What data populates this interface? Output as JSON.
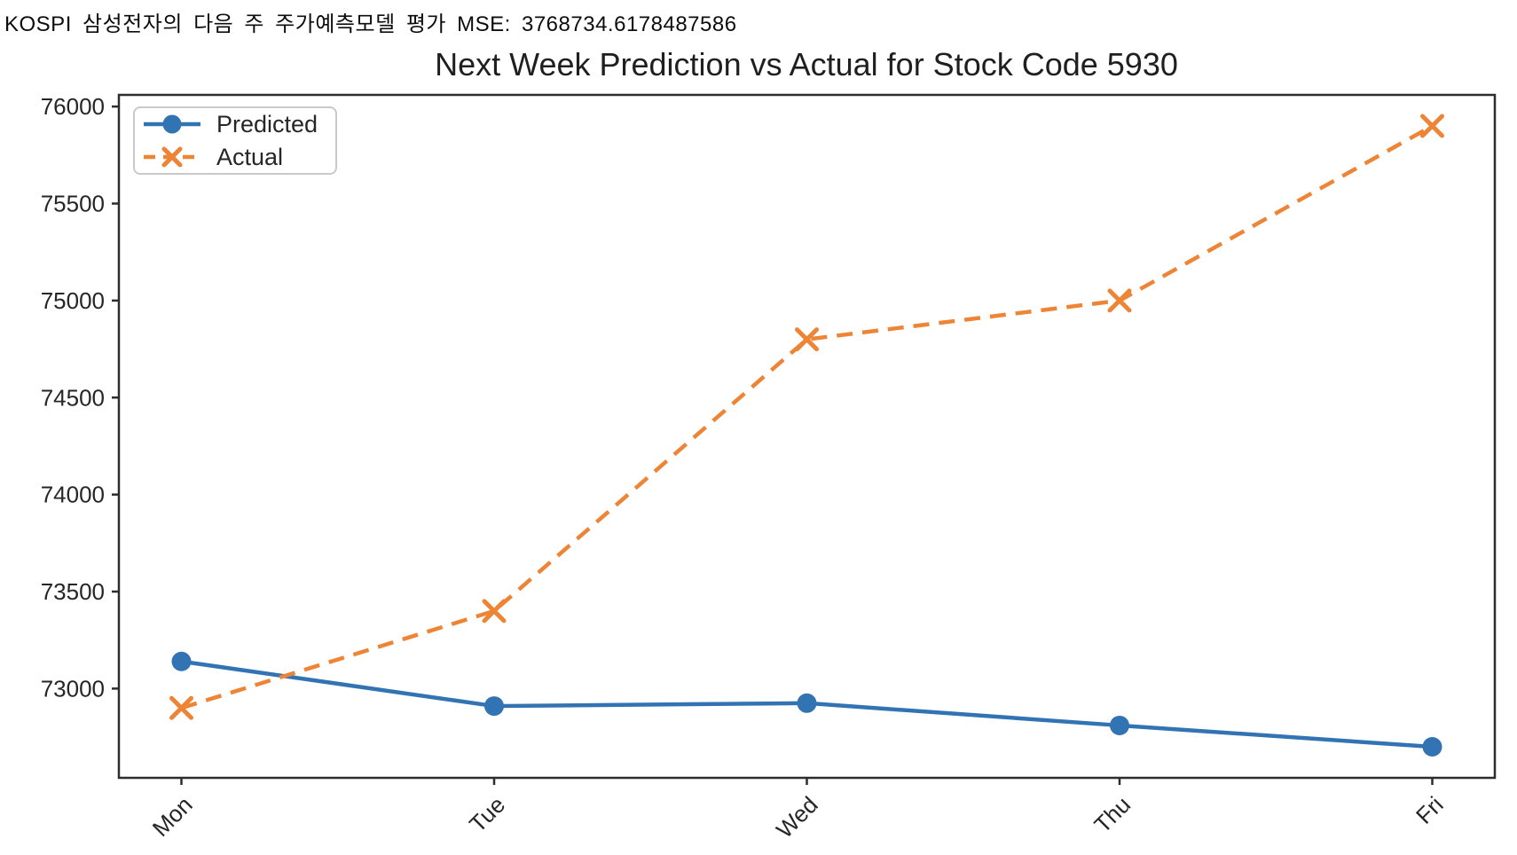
{
  "header": {
    "text": "KOSPI 삼성전자의 다음 주 주가예측모델 평가 MSE: 3768734.6178487586"
  },
  "chart_data": {
    "type": "line",
    "title": "Next Week Prediction vs Actual for Stock Code 5930",
    "xlabel": "",
    "ylabel": "",
    "categories": [
      "Mon",
      "Tue",
      "Wed",
      "Thu",
      "Fri"
    ],
    "series": [
      {
        "name": "Predicted",
        "values": [
          73140,
          72910,
          72925,
          72810,
          72700
        ],
        "color": "#3273b4",
        "line_style": "solid",
        "marker": "circle"
      },
      {
        "name": "Actual",
        "values": [
          72900,
          73400,
          74800,
          75000,
          75900
        ],
        "color": "#ee8435",
        "line_style": "dashed",
        "marker": "x"
      }
    ],
    "yticks": [
      73000,
      73500,
      74000,
      74500,
      75000,
      75500,
      76000
    ],
    "ylim": [
      72540,
      76060
    ],
    "xtick_rotation": 45,
    "grid": false,
    "legend_position": "upper left"
  },
  "colors": {
    "axis": "#2d2d2d",
    "tick_label": "#262626",
    "title": "#1f1f1f",
    "legend_border": "#c9c9c9"
  }
}
